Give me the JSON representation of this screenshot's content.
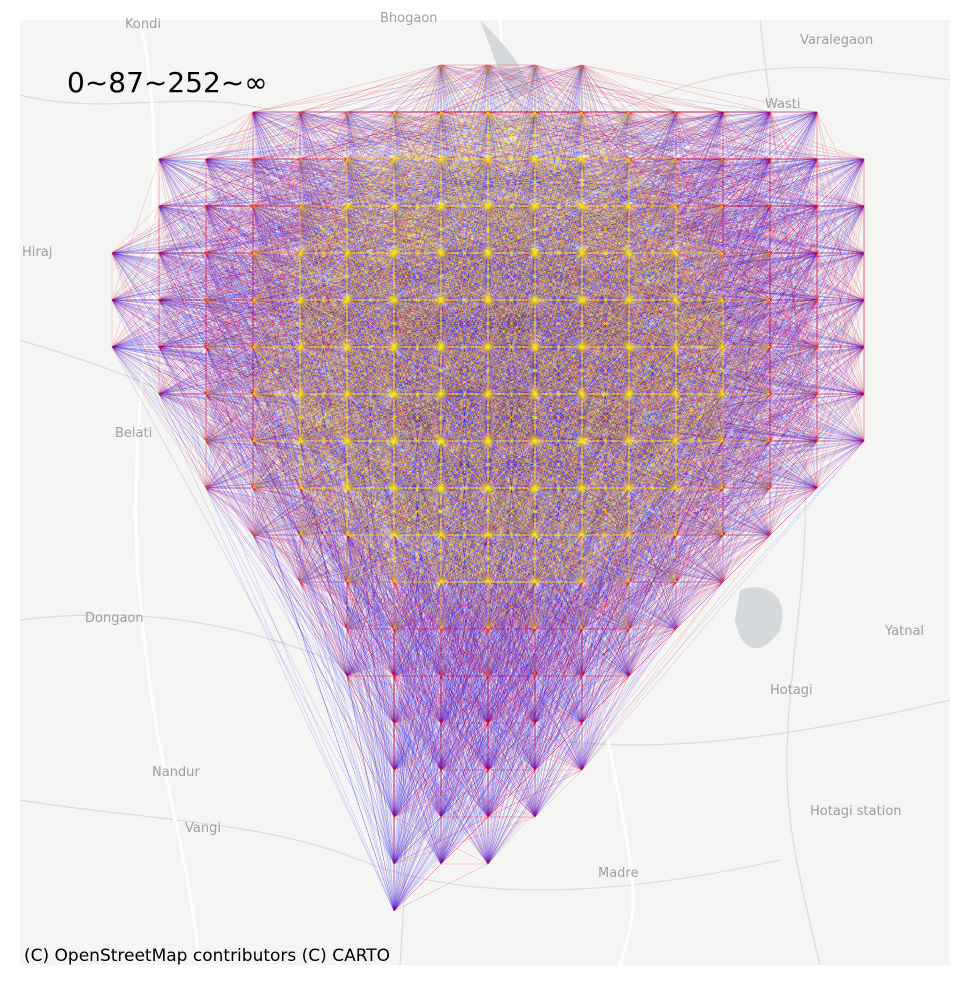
{
  "legend": {
    "text": "0~87~252~∞"
  },
  "map": {
    "places": [
      "Kondi",
      "Bhogaon",
      "Varalegaon",
      "Hiraj",
      "Wasti",
      "Belati",
      "Dongaon",
      "Yatnal",
      "Hotagi",
      "Nandur",
      "Vangi",
      "Hotagi station",
      "Madre"
    ]
  },
  "attribution": "(C) OpenStreetMap contributors (C) CARTO"
}
